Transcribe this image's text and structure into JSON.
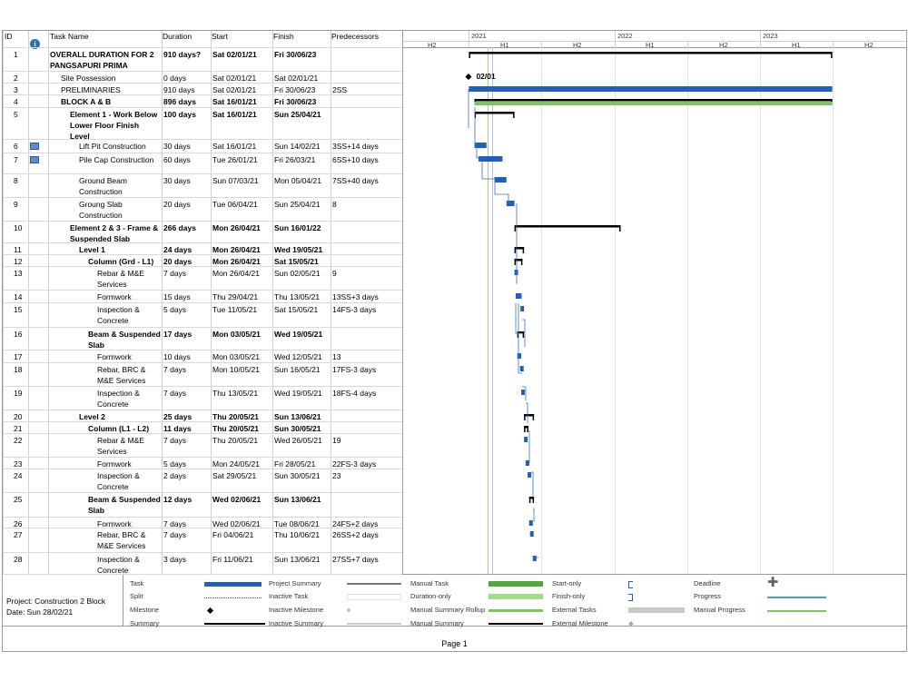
{
  "headers": {
    "id": "ID",
    "task_name": "Task Name",
    "duration": "Duration",
    "start": "Start",
    "finish": "Finish",
    "predecessors": "Predecessors"
  },
  "timescale": {
    "years": [
      "2021",
      "2022",
      "2023"
    ],
    "halves": [
      "H2",
      "H1",
      "H2",
      "H1",
      "H2",
      "H1",
      "H2"
    ]
  },
  "tasks": [
    {
      "id": "1",
      "name": "OVERALL DURATION FOR 2 PANGSAPURI PRIMA",
      "duration": "910 days?",
      "start": "Sat 02/01/21",
      "finish": "Fri 30/06/23",
      "pred": "",
      "bold": true,
      "indent": 0
    },
    {
      "id": "2",
      "name": "Site Possession",
      "duration": "0 days",
      "start": "Sat 02/01/21",
      "finish": "Sat 02/01/21",
      "pred": "",
      "bold": false,
      "indent": 1
    },
    {
      "id": "3",
      "name": "PRELIMINARIES",
      "duration": "910 days",
      "start": "Sat 02/01/21",
      "finish": "Fri 30/06/23",
      "pred": "2SS",
      "bold": false,
      "indent": 1
    },
    {
      "id": "4",
      "name": "BLOCK A & B",
      "duration": "896 days",
      "start": "Sat 16/01/21",
      "finish": "Fri 30/06/23",
      "pred": "",
      "bold": true,
      "indent": 1
    },
    {
      "id": "5",
      "name": "Element 1 - Work Below Lower Floor Finish Level",
      "duration": "100 days",
      "start": "Sat 16/01/21",
      "finish": "Sun 25/04/21",
      "pred": "",
      "bold": true,
      "indent": 2
    },
    {
      "id": "6",
      "name": "Lift Pit Construction",
      "duration": "30 days",
      "start": "Sat 16/01/21",
      "finish": "Sun 14/02/21",
      "pred": "3SS+14 days",
      "bold": false,
      "indent": 3
    },
    {
      "id": "7",
      "name": "Pile Cap Construction",
      "duration": "60 days",
      "start": "Tue 26/01/21",
      "finish": "Fri 26/03/21",
      "pred": "6SS+10 days",
      "bold": false,
      "indent": 3
    },
    {
      "id": "8",
      "name": "Ground Beam Construction",
      "duration": "30 days",
      "start": "Sun 07/03/21",
      "finish": "Mon 05/04/21",
      "pred": "7SS+40 days",
      "bold": false,
      "indent": 3
    },
    {
      "id": "9",
      "name": "Groung Slab Construction",
      "duration": "20 days",
      "start": "Tue 06/04/21",
      "finish": "Sun 25/04/21",
      "pred": "8",
      "bold": false,
      "indent": 3
    },
    {
      "id": "10",
      "name": "Element 2 & 3 - Frame & Suspended Slab",
      "duration": "266 days",
      "start": "Mon 26/04/21",
      "finish": "Sun 16/01/22",
      "pred": "",
      "bold": true,
      "indent": 2
    },
    {
      "id": "11",
      "name": "Level 1",
      "duration": "24 days",
      "start": "Mon 26/04/21",
      "finish": "Wed 19/05/21",
      "pred": "",
      "bold": true,
      "indent": 3
    },
    {
      "id": "12",
      "name": "Column (Grd - L1)",
      "duration": "20 days",
      "start": "Mon 26/04/21",
      "finish": "Sat 15/05/21",
      "pred": "",
      "bold": true,
      "indent": 4
    },
    {
      "id": "13",
      "name": "Rebar & M&E Services",
      "duration": "7 days",
      "start": "Mon 26/04/21",
      "finish": "Sun 02/05/21",
      "pred": "9",
      "bold": false,
      "indent": 5
    },
    {
      "id": "14",
      "name": "Formwork",
      "duration": "15 days",
      "start": "Thu 29/04/21",
      "finish": "Thu 13/05/21",
      "pred": "13SS+3 days",
      "bold": false,
      "indent": 5
    },
    {
      "id": "15",
      "name": "Inspection & Concrete",
      "duration": "5 days",
      "start": "Tue 11/05/21",
      "finish": "Sat 15/05/21",
      "pred": "14FS-3 days",
      "bold": false,
      "indent": 5
    },
    {
      "id": "16",
      "name": "Beam & Suspended Slab",
      "duration": "17 days",
      "start": "Mon 03/05/21",
      "finish": "Wed 19/05/21",
      "pred": "",
      "bold": true,
      "indent": 4
    },
    {
      "id": "17",
      "name": "Formwork",
      "duration": "10 days",
      "start": "Mon 03/05/21",
      "finish": "Wed 12/05/21",
      "pred": "13",
      "bold": false,
      "indent": 5
    },
    {
      "id": "18",
      "name": "Rebar, BRC & M&E Services",
      "duration": "7 days",
      "start": "Mon 10/05/21",
      "finish": "Sun 16/05/21",
      "pred": "17FS-3 days",
      "bold": false,
      "indent": 5
    },
    {
      "id": "19",
      "name": "Inspection & Concrete",
      "duration": "7 days",
      "start": "Thu 13/05/21",
      "finish": "Wed 19/05/21",
      "pred": "18FS-4 days",
      "bold": false,
      "indent": 5
    },
    {
      "id": "20",
      "name": "Level 2",
      "duration": "25 days",
      "start": "Thu 20/05/21",
      "finish": "Sun 13/06/21",
      "pred": "",
      "bold": true,
      "indent": 3
    },
    {
      "id": "21",
      "name": "Column (L1 - L2)",
      "duration": "11 days",
      "start": "Thu 20/05/21",
      "finish": "Sun 30/05/21",
      "pred": "",
      "bold": true,
      "indent": 4
    },
    {
      "id": "22",
      "name": "Rebar & M&E Services",
      "duration": "7 days",
      "start": "Thu 20/05/21",
      "finish": "Wed 26/05/21",
      "pred": "19",
      "bold": false,
      "indent": 5
    },
    {
      "id": "23",
      "name": "Formwork",
      "duration": "5 days",
      "start": "Mon 24/05/21",
      "finish": "Fri 28/05/21",
      "pred": "22FS-3 days",
      "bold": false,
      "indent": 5
    },
    {
      "id": "24",
      "name": "Inspection & Concrete",
      "duration": "2 days",
      "start": "Sat 29/05/21",
      "finish": "Sun 30/05/21",
      "pred": "23",
      "bold": false,
      "indent": 5
    },
    {
      "id": "25",
      "name": "Beam & Suspended Slab",
      "duration": "12 days",
      "start": "Wed 02/06/21",
      "finish": "Sun 13/06/21",
      "pred": "",
      "bold": true,
      "indent": 4
    },
    {
      "id": "26",
      "name": "Formwork",
      "duration": "7 days",
      "start": "Wed 02/06/21",
      "finish": "Tue 08/06/21",
      "pred": "24FS+2 days",
      "bold": false,
      "indent": 5
    },
    {
      "id": "27",
      "name": "Rebar, BRC & M&E Services",
      "duration": "7 days",
      "start": "Fri 04/06/21",
      "finish": "Thu 10/06/21",
      "pred": "26SS+2 days",
      "bold": false,
      "indent": 5
    },
    {
      "id": "28",
      "name": "Inspection & Concrete",
      "duration": "3 days",
      "start": "Fri 11/06/21",
      "finish": "Sun 13/06/21",
      "pred": "27SS+7 days",
      "bold": false,
      "indent": 5
    }
  ],
  "milestone_label": "02/01",
  "legend": {
    "project": "Project: Construction 2 Block",
    "date": "Date: Sun 28/02/21",
    "col1": [
      "Task",
      "Split",
      "Milestone",
      "Summary"
    ],
    "col2": [
      "Project Summary",
      "Inactive Task",
      "Inactive Milestone",
      "Inactive Summary"
    ],
    "col3": [
      "Manual Task",
      "Duration-only",
      "Manual Summary Rollup",
      "Manual Summary"
    ],
    "col4": [
      "Start-only",
      "Finish-only",
      "External Tasks",
      "External Milestone"
    ],
    "col5": [
      "Deadline",
      "Progress",
      "Manual Progress"
    ]
  },
  "page_label": "Page 1",
  "colors": {
    "task": "#1f5fbf",
    "green": "#7cc65a",
    "summary": "#000000",
    "grid": "#d0d0d0"
  }
}
